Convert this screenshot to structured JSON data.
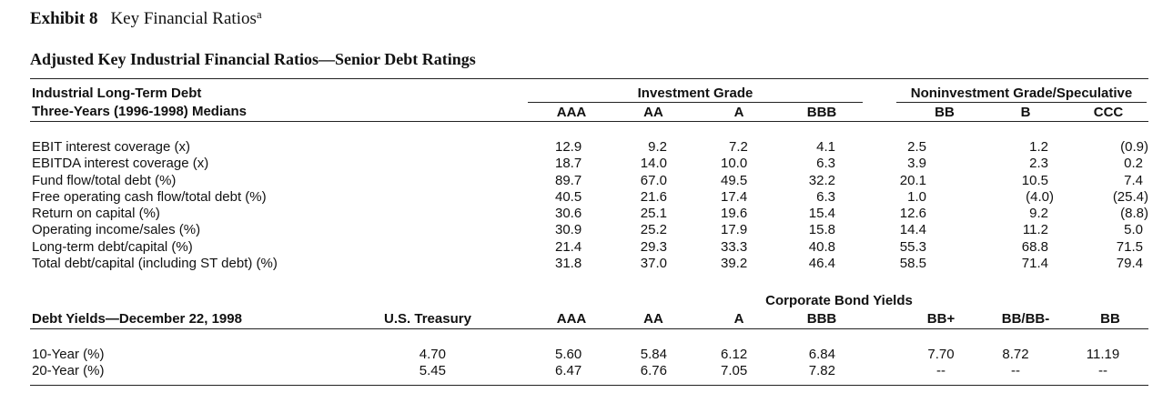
{
  "exhibit": {
    "number": "Exhibit 8",
    "title": "Key Financial Ratios",
    "footnote": "a"
  },
  "subtitle": "Adjusted Key Industrial Financial Ratios—Senior Debt Ratings",
  "ratios": {
    "header_line1": "Industrial Long-Term Debt",
    "header_line2": "Three-Years (1996-1998) Medians",
    "group_investment": "Investment Grade",
    "group_noninvestment": "Noninvestment Grade/Speculative",
    "columns": [
      "AAA",
      "AA",
      "A",
      "BBB",
      "BB",
      "B",
      "CCC"
    ],
    "rows": [
      {
        "label": "EBIT interest coverage (x)",
        "values": [
          "12.9",
          "9.2",
          "7.2",
          "4.1",
          "2.5",
          "1.2",
          "(0.9)"
        ]
      },
      {
        "label": "EBITDA interest coverage (x)",
        "values": [
          "18.7",
          "14.0",
          "10.0",
          "6.3",
          "3.9",
          "2.3",
          "0.2"
        ]
      },
      {
        "label": "Fund flow/total debt (%)",
        "values": [
          "89.7",
          "67.0",
          "49.5",
          "32.2",
          "20.1",
          "10.5",
          "7.4"
        ]
      },
      {
        "label": "Free operating cash flow/total debt (%)",
        "values": [
          "40.5",
          "21.6",
          "17.4",
          "6.3",
          "1.0",
          "(4.0)",
          "(25.4)"
        ]
      },
      {
        "label": "Return on capital (%)",
        "values": [
          "30.6",
          "25.1",
          "19.6",
          "15.4",
          "12.6",
          "9.2",
          "(8.8)"
        ]
      },
      {
        "label": "Operating income/sales (%)",
        "values": [
          "30.9",
          "25.2",
          "17.9",
          "15.8",
          "14.4",
          "11.2",
          "5.0"
        ]
      },
      {
        "label": "Long-term debt/capital (%)",
        "values": [
          "21.4",
          "29.3",
          "33.3",
          "40.8",
          "55.3",
          "68.8",
          "71.5"
        ]
      },
      {
        "label": "Total debt/capital (including ST debt) (%)",
        "values": [
          "31.8",
          "37.0",
          "39.2",
          "46.4",
          "58.5",
          "71.4",
          "79.4"
        ]
      }
    ]
  },
  "yields": {
    "header": "Debt Yields—December 22, 1998",
    "treasury_header": "U.S. Treasury",
    "corporate_header": "Corporate Bond Yields",
    "columns": [
      "AAA",
      "AA",
      "A",
      "BBB",
      "BB+",
      "BB/BB-",
      "BB"
    ],
    "rows": [
      {
        "label": "10-Year (%)",
        "treasury": "4.70",
        "values": [
          "5.60",
          "5.84",
          "6.12",
          "6.84",
          "7.70",
          "8.72",
          "11.19"
        ]
      },
      {
        "label": "20-Year (%)",
        "treasury": "5.45",
        "values": [
          "6.47",
          "6.76",
          "7.05",
          "7.82",
          "--",
          "--",
          "--"
        ]
      }
    ]
  }
}
